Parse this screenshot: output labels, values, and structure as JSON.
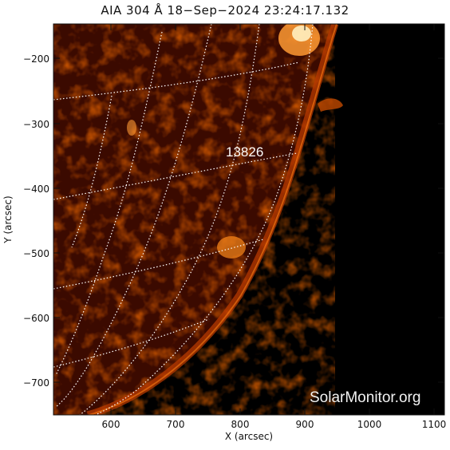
{
  "title": "AIA 304 Å 18−Sep−2024 23:24:17.132",
  "xlabel": "X (arcsec)",
  "ylabel": "Y (arcsec)",
  "region": "13826",
  "watermark": "SolarMonitor.org",
  "x_ticks": [
    "600",
    "700",
    "800",
    "900",
    "1000",
    "1100"
  ],
  "y_ticks": [
    "−200",
    "−300",
    "−400",
    "−500",
    "−600",
    "−700"
  ],
  "colors": {
    "sun_dark": "#3a0a00",
    "sun_mid": "#a02400",
    "sun_bright": "#ff8a1a",
    "space": "#000000"
  }
}
